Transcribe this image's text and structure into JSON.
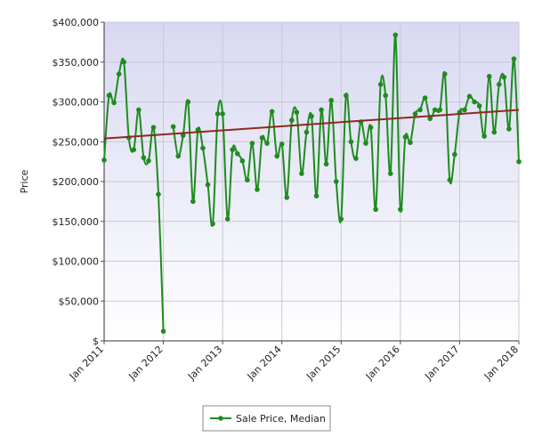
{
  "chart_data": {
    "type": "line",
    "title": "",
    "xlabel": "",
    "ylabel": "Price",
    "ylim": [
      0,
      400000
    ],
    "yticks": [
      0,
      50000,
      100000,
      150000,
      200000,
      250000,
      300000,
      350000,
      400000
    ],
    "ytick_labels": [
      "$",
      "$50,000",
      "$100,000",
      "$150,000",
      "$200,000",
      "$250,000",
      "$300,000",
      "$350,000",
      "$400,000"
    ],
    "xlim": [
      "2011-01",
      "2018-01"
    ],
    "xticks": [
      "2011-01",
      "2012-01",
      "2013-01",
      "2014-01",
      "2015-01",
      "2016-01",
      "2017-01",
      "2018-01"
    ],
    "xtick_labels": [
      "Jan 2011",
      "Jan 2012",
      "Jan 2013",
      "Jan 2014",
      "Jan 2015",
      "Jan 2016",
      "Jan 2017",
      "Jan 2018"
    ],
    "grid": true,
    "legend": "bottom-center",
    "series": [
      {
        "name": "Sale Price, Median",
        "color": "#1e8c1e",
        "x": [
          "2011-01",
          "2011-02",
          "2011-03",
          "2011-04",
          "2011-05",
          "2011-06",
          "2011-07",
          "2011-08",
          "2011-09",
          "2011-10",
          "2011-11",
          "2011-12",
          "2012-01",
          "2012-02",
          "2012-03",
          "2012-04",
          "2012-05",
          "2012-06",
          "2012-07",
          "2012-08",
          "2012-09",
          "2012-10",
          "2012-11",
          "2012-12",
          "2013-01",
          "2013-02",
          "2013-03",
          "2013-04",
          "2013-05",
          "2013-06",
          "2013-07",
          "2013-08",
          "2013-09",
          "2013-10",
          "2013-11",
          "2013-12",
          "2014-01",
          "2014-02",
          "2014-03",
          "2014-04",
          "2014-05",
          "2014-06",
          "2014-07",
          "2014-08",
          "2014-09",
          "2014-10",
          "2014-11",
          "2014-12",
          "2015-01",
          "2015-02",
          "2015-03",
          "2015-04",
          "2015-05",
          "2015-06",
          "2015-07",
          "2015-08",
          "2015-09",
          "2015-10",
          "2015-11",
          "2015-12",
          "2016-01",
          "2016-02",
          "2016-03",
          "2016-04",
          "2016-05",
          "2016-06",
          "2016-07",
          "2016-08",
          "2016-09",
          "2016-10",
          "2016-11",
          "2016-12",
          "2017-01",
          "2017-02",
          "2017-03",
          "2017-04",
          "2017-05",
          "2017-06",
          "2017-07",
          "2017-08",
          "2017-09",
          "2017-10",
          "2017-11",
          "2017-12",
          "2018-01"
        ],
        "values": [
          227000,
          308000,
          299000,
          335000,
          350000,
          255000,
          240000,
          290000,
          230000,
          226000,
          268000,
          184000,
          12000,
          null,
          269000,
          232000,
          258000,
          300000,
          175000,
          265000,
          242000,
          196000,
          147000,
          285000,
          285000,
          153000,
          240000,
          235000,
          226000,
          202000,
          248000,
          190000,
          255000,
          248000,
          288000,
          232000,
          247000,
          180000,
          277000,
          287000,
          210000,
          262000,
          282000,
          182000,
          290000,
          222000,
          302000,
          200000,
          153000,
          308000,
          250000,
          229000,
          275000,
          248000,
          268000,
          165000,
          322000,
          308000,
          210000,
          384000,
          165000,
          256000,
          249000,
          285000,
          290000,
          305000,
          279000,
          290000,
          290000,
          335000,
          202000,
          234000,
          287000,
          290000,
          307000,
          300000,
          295000,
          257000,
          332000,
          262000,
          322000,
          331000,
          266000,
          354000,
          225000
        ]
      },
      {
        "name": "",
        "type": "trend",
        "color": "#8b2a1e",
        "x": [
          "2011-01",
          "2018-01"
        ],
        "values": [
          254000,
          290000
        ]
      }
    ]
  }
}
